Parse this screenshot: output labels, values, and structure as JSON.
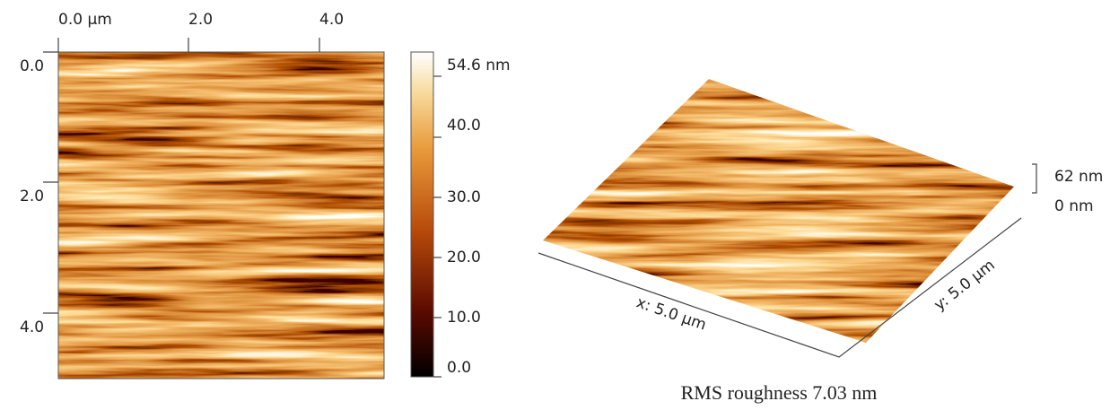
{
  "height_map": {
    "top_axis": {
      "ticks": [
        "0.0 µm",
        "2.0",
        "4.0"
      ]
    },
    "left_axis": {
      "ticks": [
        "0.0",
        "2.0",
        "4.0"
      ]
    }
  },
  "colorbar": {
    "ticks": [
      "54.6 nm",
      "40.0",
      "30.0",
      "20.0",
      "10.0",
      "0.0"
    ]
  },
  "surface_3d": {
    "z_labels": [
      "62 nm",
      "0 nm"
    ],
    "x_label": "x: 5.0 µm",
    "y_label": "y: 5.0 µm"
  },
  "caption": "RMS roughness 7.03 nm"
}
